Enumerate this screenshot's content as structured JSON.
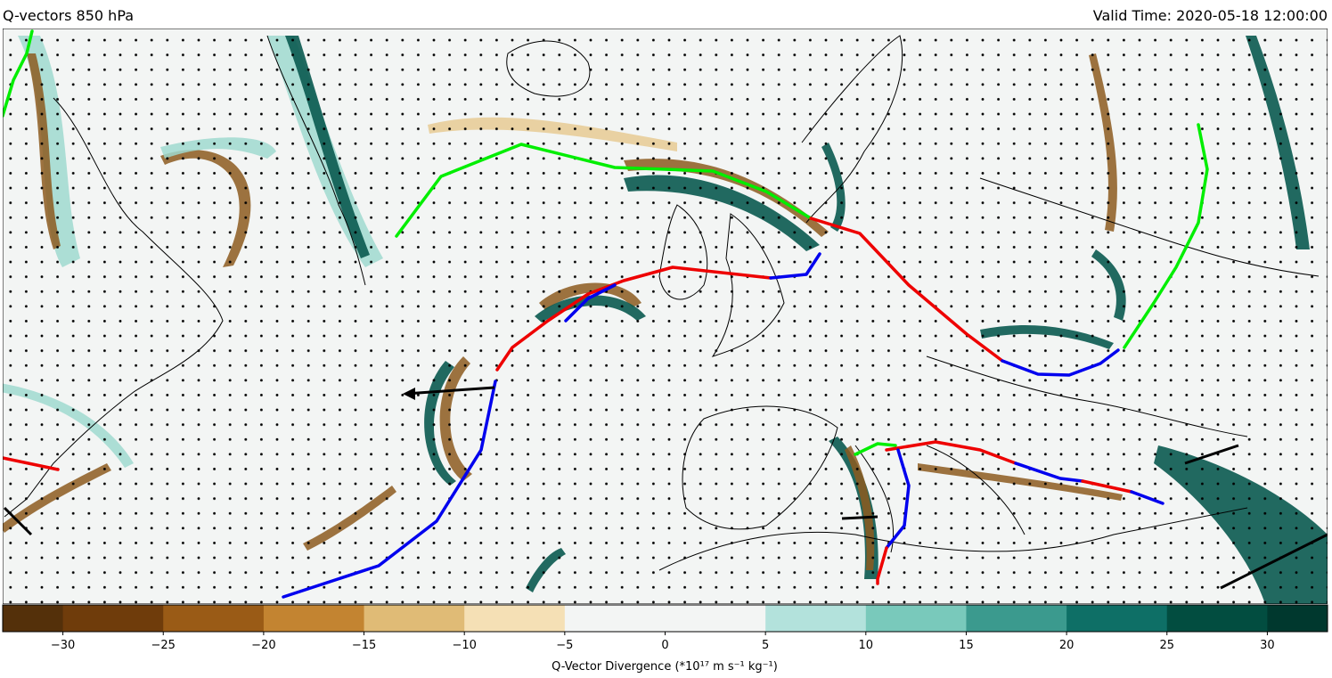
{
  "header": {
    "title": "Q-vectors 850 hPa",
    "valid_time": "Valid Time: 2020-05-18 12:00:00"
  },
  "colorbar": {
    "label": "Q-Vector Divergence (*10¹⁷ m s⁻¹ kg⁻¹)",
    "levels": [
      -33,
      -30,
      -25,
      -20,
      -15,
      -10,
      -5,
      5,
      10,
      15,
      20,
      25,
      30,
      33
    ],
    "colors": [
      "#54300a",
      "#6f3c0b",
      "#9a5b16",
      "#c38431",
      "#e0bb76",
      "#f5e0b5",
      "#f3f5f4",
      "#b3e2dc",
      "#79c9bb",
      "#3b9a8e",
      "#0e6f66",
      "#024d40",
      "#00382e"
    ],
    "lim": [
      -33,
      33
    ],
    "ticks": [
      {
        "value": -30,
        "label": "−30"
      },
      {
        "value": -25,
        "label": "−25"
      },
      {
        "value": -20,
        "label": "−20"
      },
      {
        "value": -15,
        "label": "−15"
      },
      {
        "value": -10,
        "label": "−10"
      },
      {
        "value": -5,
        "label": "−5"
      },
      0,
      5,
      10,
      15,
      20,
      25,
      30
    ]
  }
}
